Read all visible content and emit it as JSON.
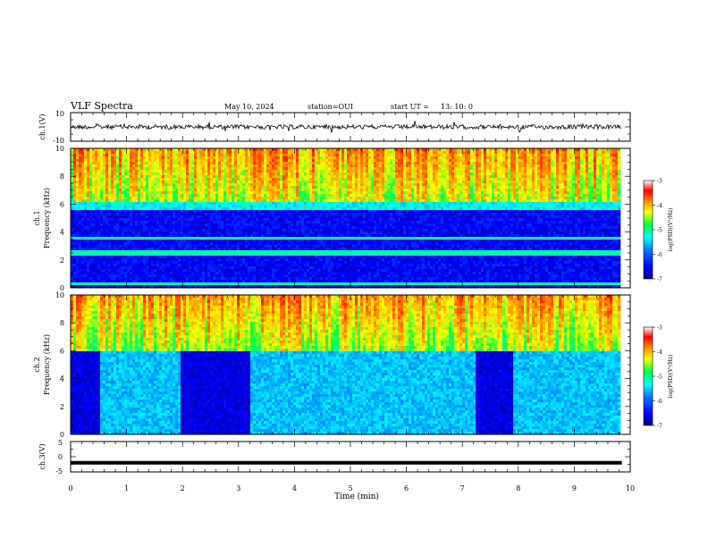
{
  "header": {
    "title": "VLF Spectra",
    "date": "May 10, 2024",
    "station": "station=OUI",
    "start_label": "start UT =",
    "start_time": "13: 10: 0"
  },
  "chart_data": [
    {
      "type": "line",
      "ylabel": "ch.1(V)",
      "ylim": [
        -10,
        10
      ],
      "y_ticks": [
        "10",
        "-10"
      ],
      "trace": "noisy waveform centred near 0 V, amplitude about 1 V",
      "xlim": [
        0,
        10
      ]
    },
    {
      "type": "heatmap",
      "ylabel_line1": "ch.1",
      "ylabel_line2": "Frequency (kHz)",
      "ylim": [
        0,
        10
      ],
      "y_ticks": [
        "0",
        "2",
        "4",
        "6",
        "8",
        "10"
      ],
      "data_extent_min": [
        0,
        9.85
      ],
      "colorbar": {
        "label": "log(PSD)(V²/Hz)",
        "range": [
          -7,
          -3
        ],
        "ticks": [
          "-3",
          "-4",
          "-5",
          "-6",
          "-7"
        ]
      },
      "description": "dark blue below ~6 kHz, green/yellow/red streaks above ~6 kHz, horizontal lines near 0.3, 2.5, 3.5 kHz"
    },
    {
      "type": "heatmap",
      "ylabel_line1": "ch.2",
      "ylabel_line2": "Frequency (kHz)",
      "ylim": [
        0,
        10
      ],
      "y_ticks": [
        "0",
        "2",
        "4",
        "6",
        "8",
        "10"
      ],
      "data_extent_min": [
        0,
        9.85
      ],
      "colorbar": {
        "label": "log(PSD)(V²/Hz)",
        "range": [
          -7,
          -3
        ],
        "ticks": [
          "-3",
          "-4",
          "-5",
          "-6",
          "-7"
        ]
      },
      "dark_intervals_min": [
        [
          0,
          0.5
        ],
        [
          1.95,
          2.8
        ],
        [
          2.8,
          3.2
        ],
        [
          7.2,
          7.9
        ]
      ],
      "description": "light blue/cyan below ~5 kHz, green-yellow-red above 6 kHz, dark blue bands during listed intervals"
    },
    {
      "type": "line",
      "ylabel": "ch.3(V)",
      "ylim": [
        -5,
        5
      ],
      "y_ticks": [
        "5",
        "0",
        "-5"
      ],
      "trace": "constant near -2 V",
      "value": -2,
      "xlim": [
        0,
        10
      ]
    }
  ],
  "x_axis": {
    "label": "Time (min)",
    "ticks": [
      "0",
      "1",
      "2",
      "3",
      "4",
      "5",
      "6",
      "7",
      "8",
      "9",
      "10"
    ],
    "xlim": [
      0,
      10
    ]
  },
  "colors": {
    "frame": "#000000",
    "colormap": [
      "#00007f",
      "#0000ff",
      "#0080ff",
      "#00ffff",
      "#00ff40",
      "#ffff00",
      "#ff8000",
      "#ff0000",
      "#ffffff"
    ]
  }
}
